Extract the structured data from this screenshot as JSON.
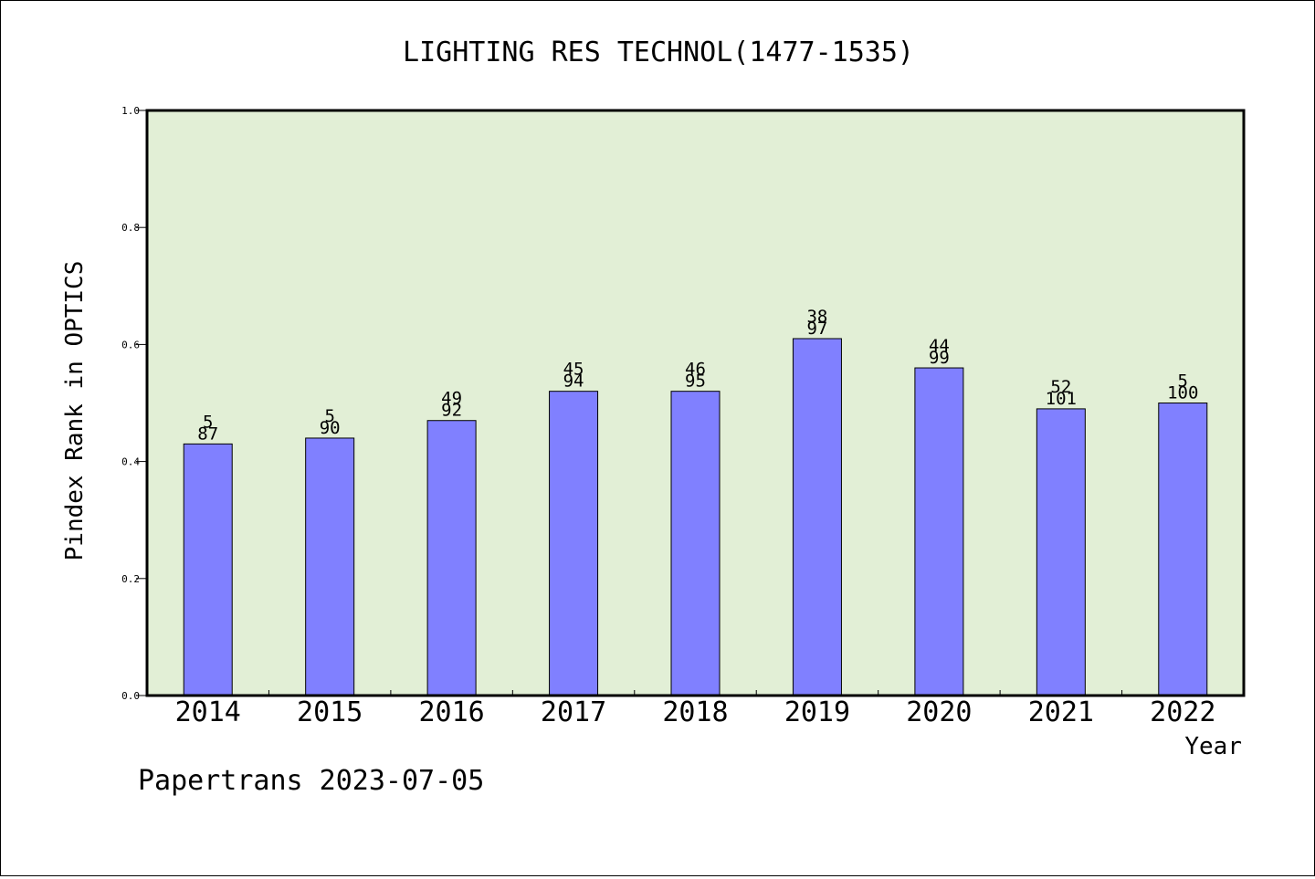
{
  "chart_data": {
    "type": "bar",
    "title": "LIGHTING RES TECHNOL(1477-1535)",
    "xlabel": "Year",
    "ylabel": "Pindex Rank in OPTICS",
    "footer": "Papertrans 2023-07-05",
    "categories": [
      "2014",
      "2015",
      "2016",
      "2017",
      "2018",
      "2019",
      "2020",
      "2021",
      "2022"
    ],
    "values": [
      0.43,
      0.44,
      0.47,
      0.52,
      0.52,
      0.61,
      0.56,
      0.49,
      0.5
    ],
    "label_top": [
      "5",
      "5",
      "49",
      "45",
      "46",
      "38",
      "44",
      "52",
      "5"
    ],
    "label_bottom": [
      "87",
      "90",
      "92",
      "94",
      "95",
      "97",
      "99",
      "101",
      "100"
    ],
    "ylim": [
      0,
      1.0
    ],
    "yticks": [
      "0.0",
      "0.2",
      "0.4",
      "0.6",
      "0.8",
      "1.0"
    ],
    "grid": false,
    "colors": {
      "plot_bg": "#e2efd6",
      "bar": "#8080ff"
    }
  }
}
